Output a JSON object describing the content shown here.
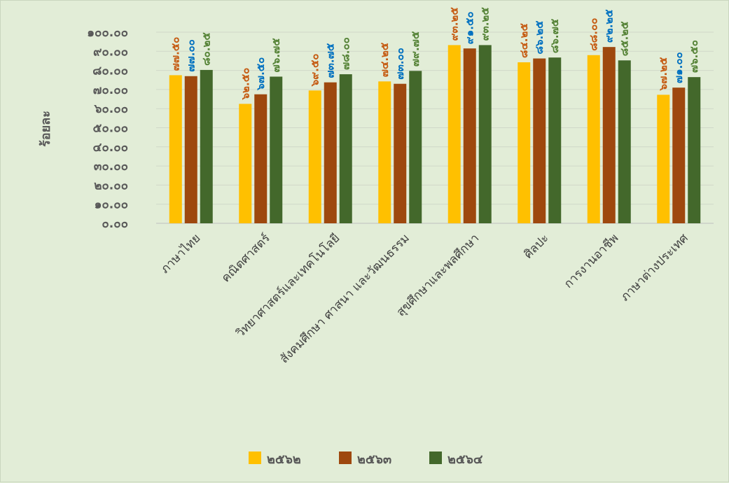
{
  "chart_data": {
    "type": "bar",
    "title": "",
    "xlabel": "",
    "ylabel": "ร้อยละ",
    "ylim": [
      0,
      100
    ],
    "yticks": [
      "0.00",
      "10.00",
      "20.00",
      "30.00",
      "40.00",
      "50.00",
      "60.00",
      "70.00",
      "80.00",
      "90.00",
      "100.00"
    ],
    "grid": true,
    "legend_position": "bottom",
    "categories": [
      "ภาษาไทย",
      "คณิตศาสตร์",
      "วิทยาศาสตร์และเทคโนโลยี",
      "สังคมศึกษา ศาสนา และวัฒนธรรม",
      "สุขศึกษาและพลศึกษา",
      "ศิลปะ",
      "การงานอาชีพ",
      "ภาษาต่างประเทศ"
    ],
    "series": [
      {
        "name": "2562",
        "color": "#ffc000",
        "values": [
          77.5,
          62.5,
          69.5,
          74.25,
          93.25,
          84.25,
          88.0,
          67.25
        ],
        "labels": [
          "๗๗.๕๐",
          "๖๒.๕๐",
          "๖๙.๕๐",
          "๗๔.๒๕",
          "๙๓.๒๕",
          "๘๔.๒๕",
          "๘๘.๐๐",
          "๖๗.๒๕"
        ],
        "label_color": "#c55a11"
      },
      {
        "name": "2563",
        "color": "#9e480e",
        "values": [
          77.0,
          67.5,
          73.75,
          73.0,
          91.5,
          86.25,
          92.25,
          71.0
        ],
        "labels": [
          "๗๗.๐๐",
          "๖๗.๕๐",
          "๗๓.๗๕",
          "๗๓.๐๐",
          "๙๑.๕๐",
          "๘๖.๒๕",
          "๙๒.๒๕",
          "๗๑.๐๐"
        ],
        "label_color": "#0070c0"
      },
      {
        "name": "2564",
        "color": "#43682b",
        "values": [
          80.25,
          76.75,
          78.0,
          79.75,
          93.25,
          86.75,
          85.25,
          76.5
        ],
        "labels": [
          "๘๐.๒๕",
          "๗๖.๗๕",
          "๗๘.๐๐",
          "๗๙.๗๕",
          "๙๓.๒๕",
          "๘๖.๗๕",
          "๘๕.๒๕",
          "๗๖.๕๐"
        ],
        "label_color": "#548235"
      }
    ]
  },
  "legend": {
    "items": [
      {
        "label": "๒๕๖๒",
        "color": "#ffc000"
      },
      {
        "label": "๒๕๖๓",
        "color": "#9e480e"
      },
      {
        "label": "๒๕๖๔",
        "color": "#43682b"
      }
    ]
  },
  "axis_display": {
    "ytick_labels": [
      "๐.๐๐",
      "๑๐.๐๐",
      "๒๐.๐๐",
      "๓๐.๐๐",
      "๔๐.๐๐",
      "๕๐.๐๐",
      "๖๐.๐๐",
      "๗๐.๐๐",
      "๘๐.๐๐",
      "๙๐.๐๐",
      "๑๐๐.๐๐"
    ]
  }
}
